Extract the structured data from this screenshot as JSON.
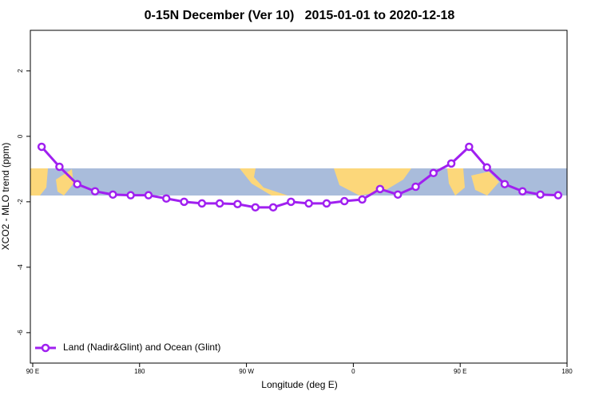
{
  "chart_data": {
    "type": "line",
    "title": "0-15N December (Ver 10)   2015-01-01 to 2020-12-18",
    "x_label": "Longitude (deg E)",
    "y_label": "XCO2 - MLO trend (ppm)",
    "x": [
      97.5,
      112.5,
      127.5,
      142.5,
      157.5,
      172.5,
      187.5,
      202.5,
      217.5,
      232.5,
      247.5,
      262.5,
      277.5,
      292.5,
      307.5,
      322.5,
      337.5,
      352.5,
      367.5,
      382.5,
      397.5,
      412.5,
      427.5,
      442.5,
      457.5,
      472.5,
      487.5,
      502.5,
      517.5,
      532.5
    ],
    "series": [
      {
        "name": "Land (Nadir&Glint) and Ocean (Glint)",
        "color": "#a020f0",
        "values": [
          -0.32,
          -0.93,
          -1.46,
          -1.68,
          -1.78,
          -1.8,
          -1.8,
          -1.9,
          -2.0,
          -2.05,
          -2.05,
          -2.07,
          -2.17,
          -2.17,
          -2.0,
          -2.05,
          -2.05,
          -1.98,
          -1.93,
          -1.61,
          -1.78,
          -1.54,
          -1.12,
          -0.83,
          -0.32,
          -0.95,
          -1.46,
          -1.68,
          -1.78,
          -1.8
        ]
      }
    ],
    "xlim": [
      88,
      540
    ],
    "xticks": [
      {
        "value": 90,
        "label": "90 E"
      },
      180,
      {
        "value": 270,
        "label": "90 W"
      },
      {
        "value": 360,
        "label": "0"
      },
      {
        "value": 450,
        "label": "90 E"
      },
      {
        "value": 540,
        "label": "180"
      }
    ],
    "ylim": [
      -6.93,
      3.24
    ],
    "yticks": [
      -6,
      -4,
      -2,
      0,
      2
    ],
    "legend": "bottom-left"
  }
}
